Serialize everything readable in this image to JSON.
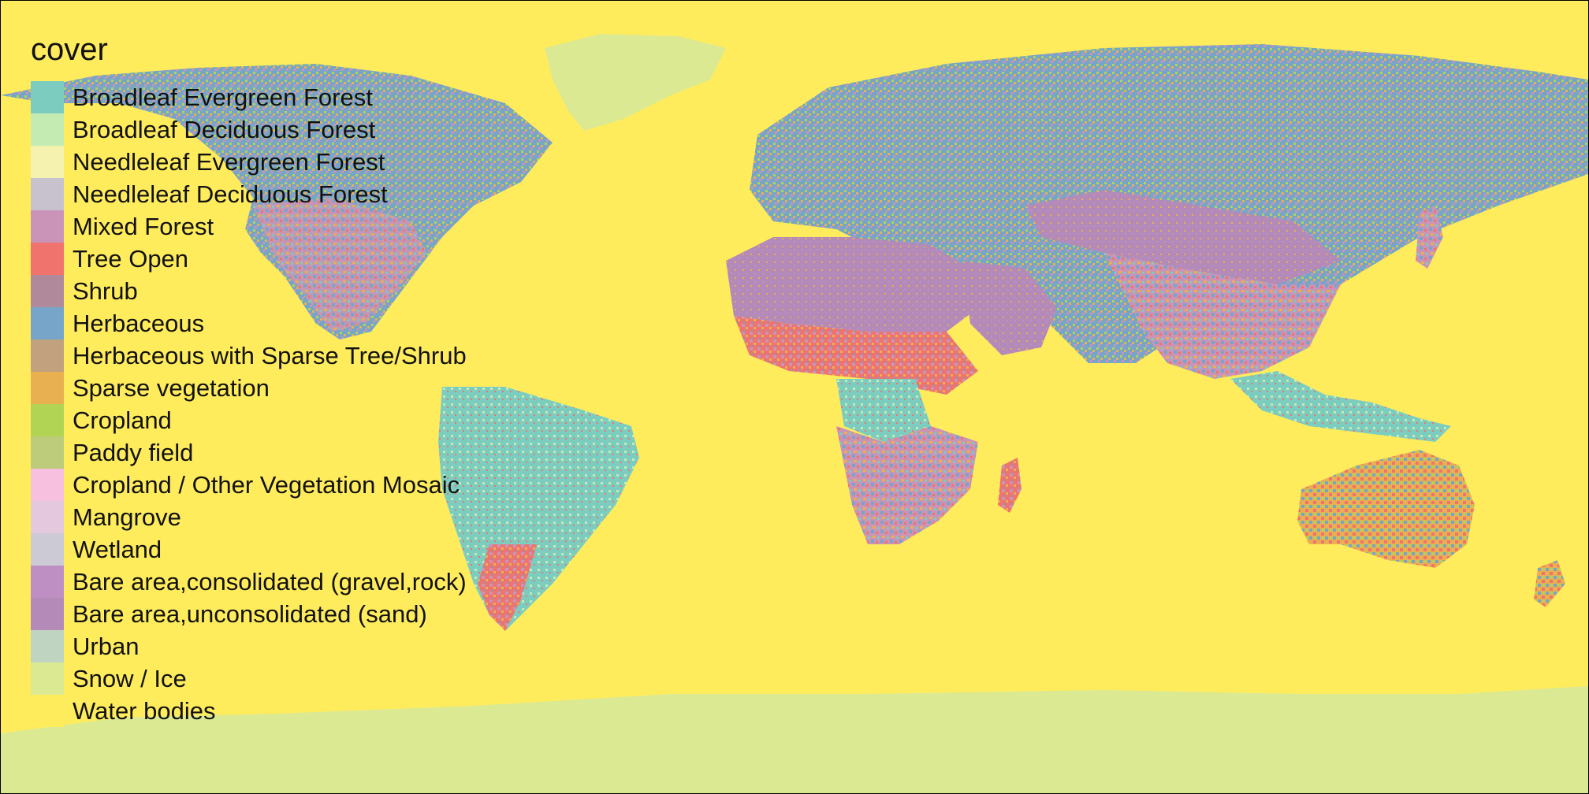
{
  "legend": {
    "title": "cover",
    "items": [
      {
        "label": "Broadleaf Evergreen Forest",
        "color": "#7ccdc0"
      },
      {
        "label": "Broadleaf Deciduous Forest",
        "color": "#c3ebb2"
      },
      {
        "label": "Needleleaf Evergreen Forest",
        "color": "#f4f2ae"
      },
      {
        "label": "Needleleaf Deciduous Forest",
        "color": "#c8c2cf"
      },
      {
        "label": "Mixed Forest",
        "color": "#c994b7"
      },
      {
        "label": "Tree Open",
        "color": "#f1736e"
      },
      {
        "label": "Shrub",
        "color": "#b08a9a"
      },
      {
        "label": "Herbaceous",
        "color": "#77a5c9"
      },
      {
        "label": "Herbaceous with Sparse Tree/Shrub",
        "color": "#c1a17e"
      },
      {
        "label": "Sparse vegetation",
        "color": "#e9b051"
      },
      {
        "label": "Cropland",
        "color": "#b2d455"
      },
      {
        "label": "Paddy field",
        "color": "#bccc7a"
      },
      {
        "label": "Cropland / Other Vegetation Mosaic",
        "color": "#f8c0df"
      },
      {
        "label": "Mangrove",
        "color": "#e4c8de"
      },
      {
        "label": "Wetland",
        "color": "#cccad4"
      },
      {
        "label": "Bare area,consolidated (gravel,rock)",
        "color": "#bd8fc3"
      },
      {
        "label": "Bare area,unconsolidated (sand)",
        "color": "#b38ab8"
      },
      {
        "label": "Urban",
        "color": "#bfd5c2"
      },
      {
        "label": "Snow / Ice",
        "color": "#dce993"
      },
      {
        "label": "Water bodies",
        "color": "#ffec5c"
      }
    ]
  }
}
